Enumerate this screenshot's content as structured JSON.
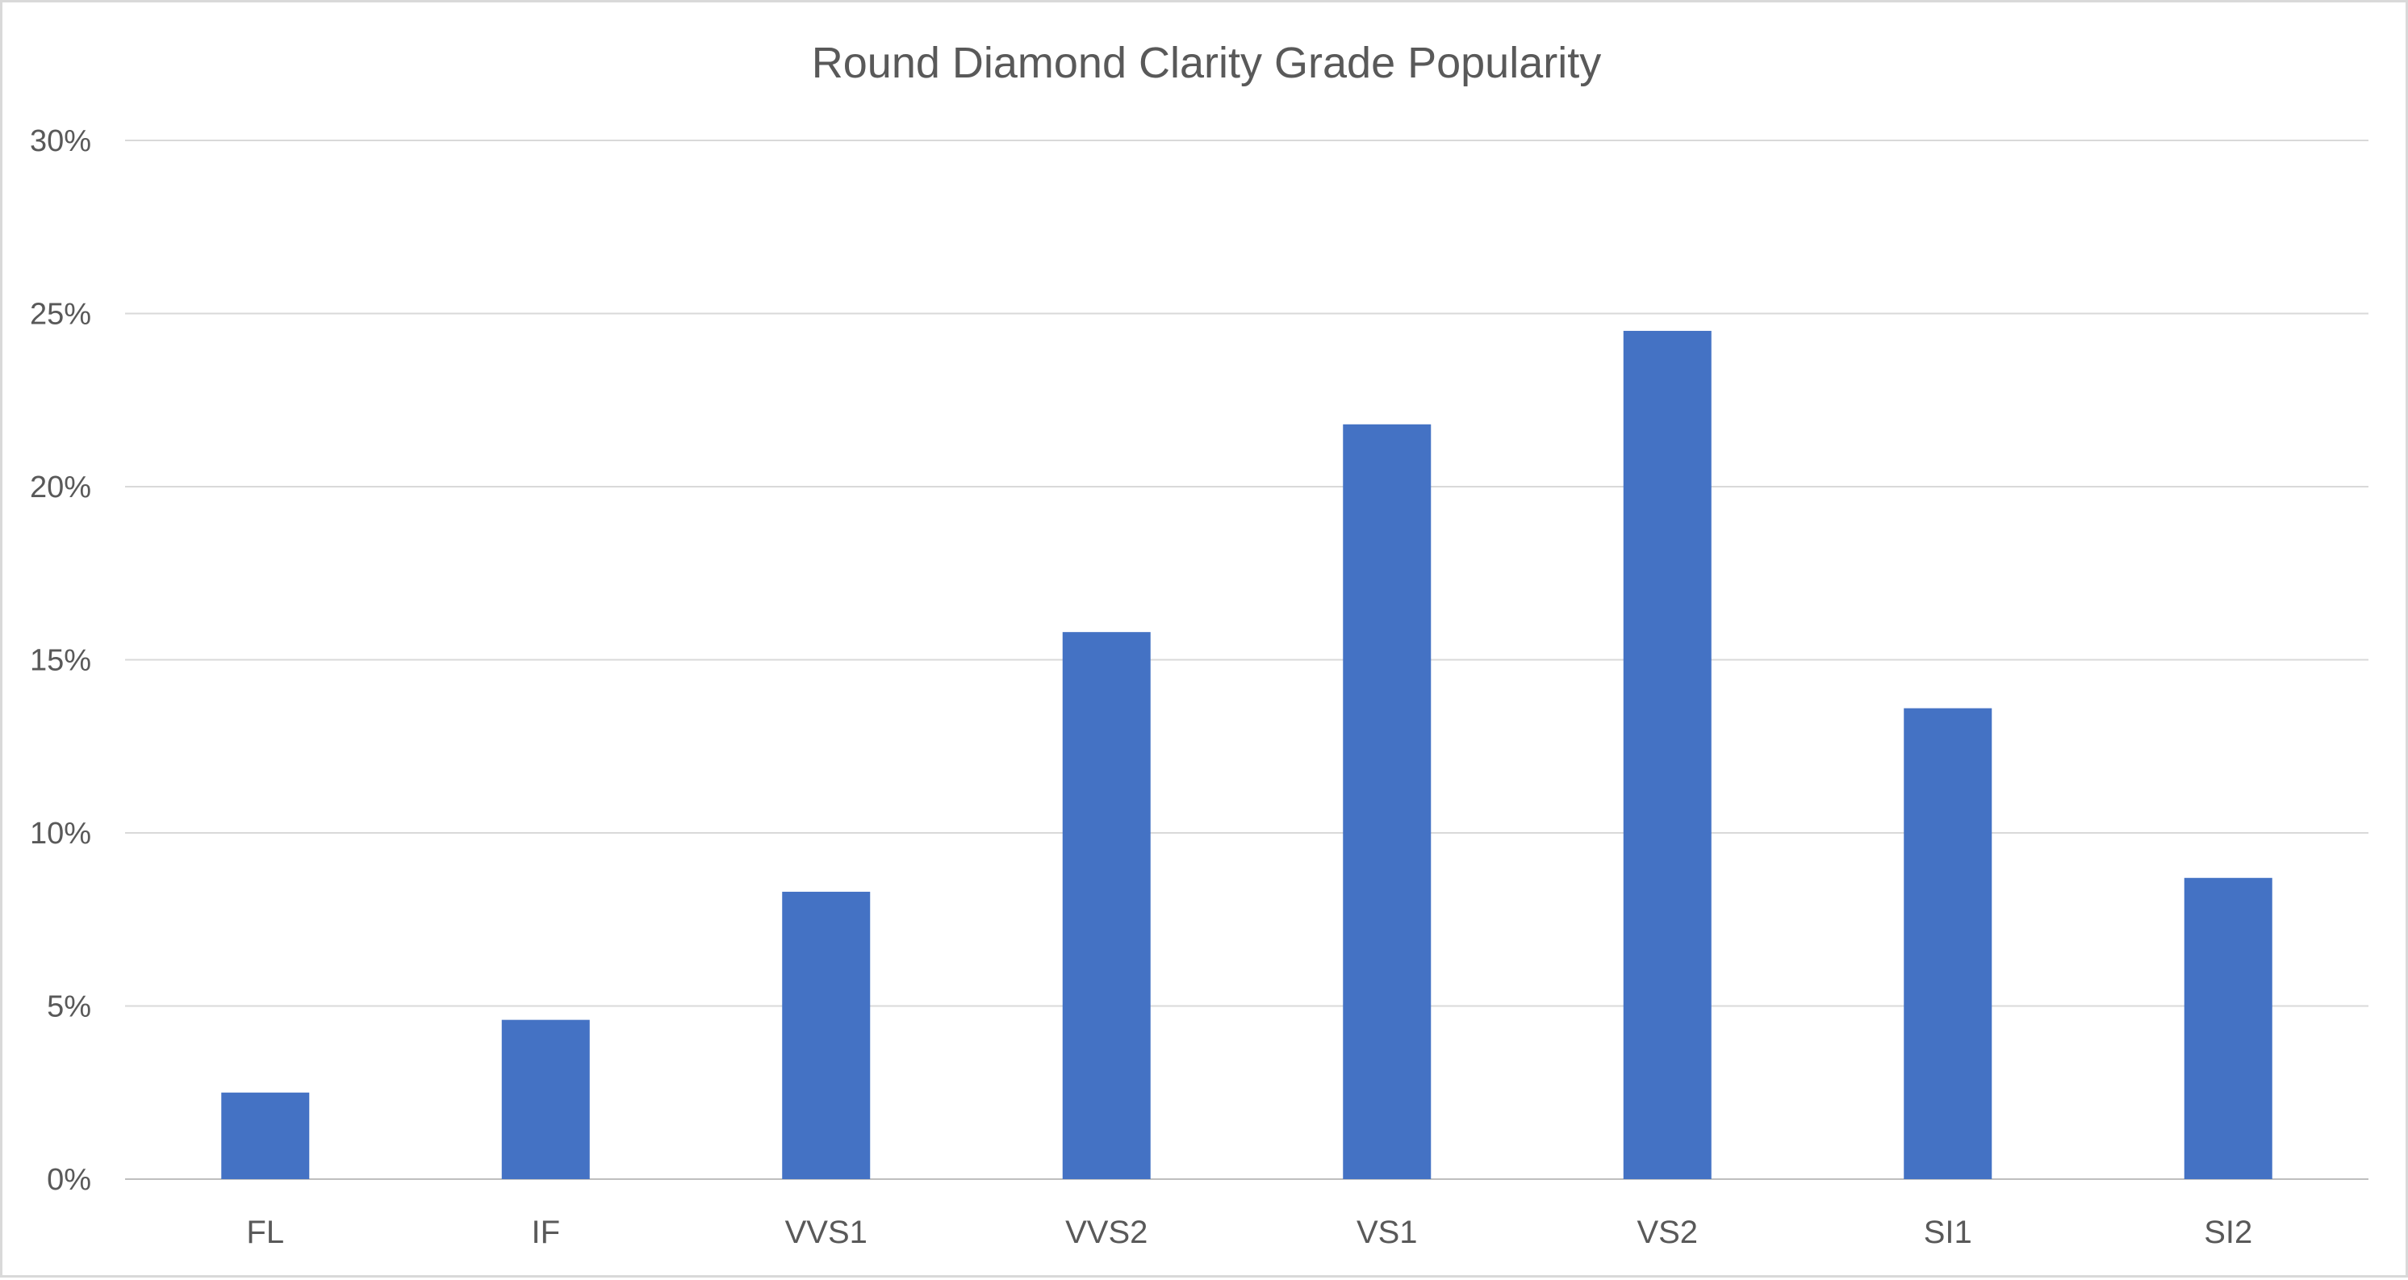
{
  "chart_data": {
    "type": "bar",
    "title": "Round Diamond Clarity Grade Popularity",
    "xlabel": "",
    "ylabel": "",
    "categories": [
      "FL",
      "IF",
      "VVS1",
      "VVS2",
      "VS1",
      "VS2",
      "SI1",
      "SI2"
    ],
    "series": [
      {
        "values": [
          2.5,
          4.6,
          8.3,
          15.8,
          21.8,
          24.5,
          13.6,
          8.7
        ]
      }
    ],
    "ylim": [
      0,
      30
    ],
    "yticks": [
      0,
      5,
      10,
      15,
      20,
      25,
      30
    ],
    "ytick_labels": [
      "0%",
      "5%",
      "10%",
      "15%",
      "20%",
      "25%",
      "30%"
    ],
    "grid": true,
    "legend": "none",
    "bar_color": "#4472c4",
    "grid_color": "#d9d9d9"
  }
}
